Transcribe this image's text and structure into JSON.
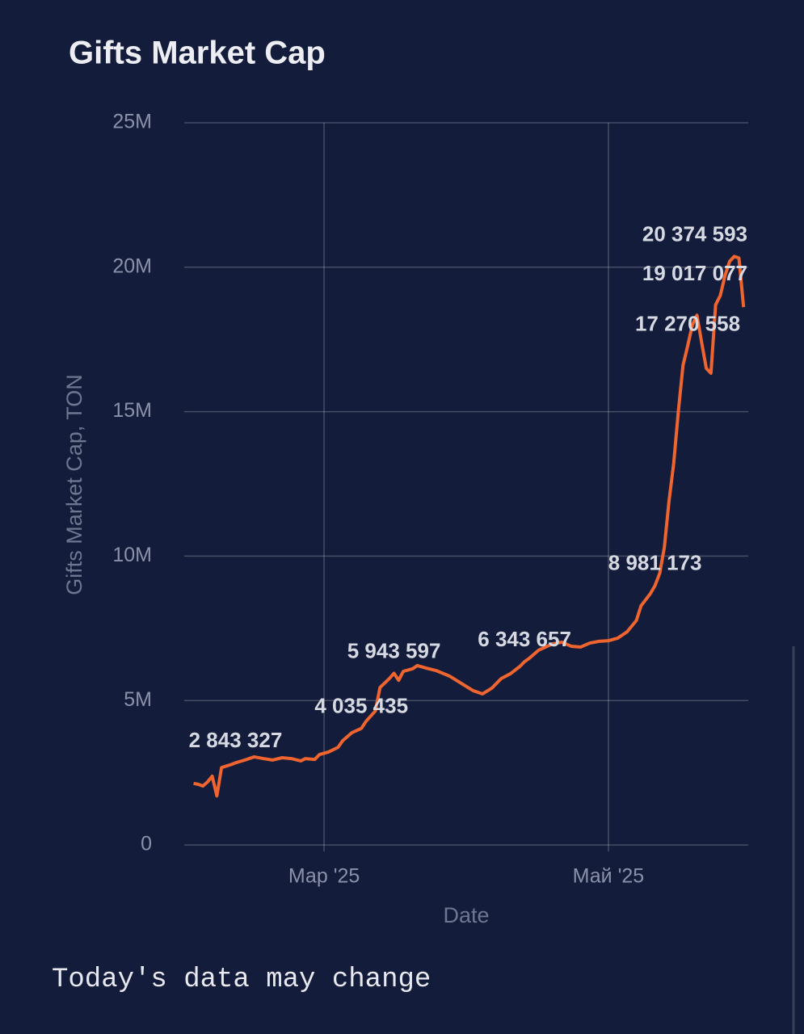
{
  "chart_data": {
    "type": "line",
    "title": "Gifts Market Cap",
    "ylabel": "Gifts Market Cap, TON",
    "xlabel": "Date",
    "footnote": "Today's data may change",
    "xlim": [
      "2025-01-30",
      "2025-05-31"
    ],
    "xticks": [
      {
        "value": "2025-03-01",
        "label": "Мар '25"
      },
      {
        "value": "2025-05-01",
        "label": "Май '25"
      }
    ],
    "ylim": [
      0,
      25000000
    ],
    "yticks": [
      0,
      {
        "value": 5000000,
        "label": "5M"
      },
      {
        "value": 10000000,
        "label": "10M"
      },
      {
        "value": 15000000,
        "label": "15M"
      },
      {
        "value": 20000000,
        "label": "20M"
      },
      {
        "value": 25000000,
        "label": "25M"
      }
    ],
    "grid": true,
    "x": [
      "2025-02-01",
      "2025-02-02",
      "2025-02-03",
      "2025-02-04",
      "2025-02-05",
      "2025-02-06",
      "2025-02-07",
      "2025-02-09",
      "2025-02-10",
      "2025-02-12",
      "2025-02-14",
      "2025-02-16",
      "2025-02-18",
      "2025-02-20",
      "2025-02-22",
      "2025-02-24",
      "2025-02-25",
      "2025-02-27",
      "2025-02-28",
      "2025-03-02",
      "2025-03-04",
      "2025-03-05",
      "2025-03-07",
      "2025-03-09",
      "2025-03-10",
      "2025-03-12",
      "2025-03-13",
      "2025-03-15",
      "2025-03-16",
      "2025-03-17",
      "2025-03-18",
      "2025-03-20",
      "2025-03-21",
      "2025-03-23",
      "2025-03-25",
      "2025-03-28",
      "2025-03-31",
      "2025-04-02",
      "2025-04-04",
      "2025-04-06",
      "2025-04-08",
      "2025-04-10",
      "2025-04-12",
      "2025-04-13",
      "2025-04-14",
      "2025-04-16",
      "2025-04-19",
      "2025-04-21",
      "2025-04-23",
      "2025-04-25",
      "2025-04-27",
      "2025-04-29",
      "2025-05-01",
      "2025-05-03",
      "2025-05-05",
      "2025-05-07",
      "2025-05-08",
      "2025-05-10",
      "2025-05-11",
      "2025-05-12",
      "2025-05-13",
      "2025-05-14",
      "2025-05-15",
      "2025-05-16",
      "2025-05-17",
      "2025-05-18",
      "2025-05-19",
      "2025-05-20",
      "2025-05-21",
      "2025-05-22",
      "2025-05-23",
      "2025-05-24",
      "2025-05-25",
      "2025-05-26",
      "2025-05-27",
      "2025-05-28",
      "2025-05-29",
      "2025-05-30"
    ],
    "series": [
      {
        "name": "Gifts Market Cap",
        "color": "#f0652f",
        "values": [
          2130000,
          2100000,
          2040000,
          2180000,
          2380000,
          1700000,
          2680000,
          2780000,
          2843327,
          2940000,
          3050000,
          2990000,
          2940000,
          3020000,
          2990000,
          2910000,
          2990000,
          2960000,
          3130000,
          3220000,
          3380000,
          3610000,
          3890000,
          4035435,
          4280000,
          4640000,
          5450000,
          5760000,
          5943597,
          5700000,
          6010000,
          6100000,
          6210000,
          6120000,
          6040000,
          5840000,
          5540000,
          5340000,
          5230000,
          5430000,
          5760000,
          5930000,
          6180000,
          6343657,
          6460000,
          6740000,
          6960000,
          7020000,
          6880000,
          6850000,
          6990000,
          7050000,
          7070000,
          7160000,
          7380000,
          7770000,
          8280000,
          8700000,
          8981173,
          9400000,
          10300000,
          11900000,
          13200000,
          15000000,
          16600000,
          17270558,
          18000000,
          18340000,
          17400000,
          16500000,
          16330000,
          18700000,
          19017077,
          19700000,
          20200000,
          20374593,
          20320000,
          18620000
        ],
        "value_labels": [
          null,
          null,
          null,
          null,
          null,
          null,
          null,
          null,
          "2 843 327",
          null,
          null,
          null,
          null,
          null,
          null,
          null,
          null,
          null,
          null,
          null,
          null,
          null,
          null,
          "4 035 435",
          null,
          null,
          null,
          null,
          "5 943 597",
          null,
          null,
          null,
          null,
          null,
          null,
          null,
          null,
          null,
          null,
          null,
          null,
          null,
          null,
          "6 343 657",
          null,
          null,
          null,
          null,
          null,
          null,
          null,
          null,
          null,
          null,
          null,
          null,
          null,
          null,
          "8 981 173",
          null,
          null,
          null,
          null,
          null,
          null,
          "17 270 558",
          null,
          null,
          null,
          null,
          null,
          null,
          "19 017 077",
          null,
          null,
          "20 374 593",
          null,
          null
        ]
      }
    ]
  }
}
